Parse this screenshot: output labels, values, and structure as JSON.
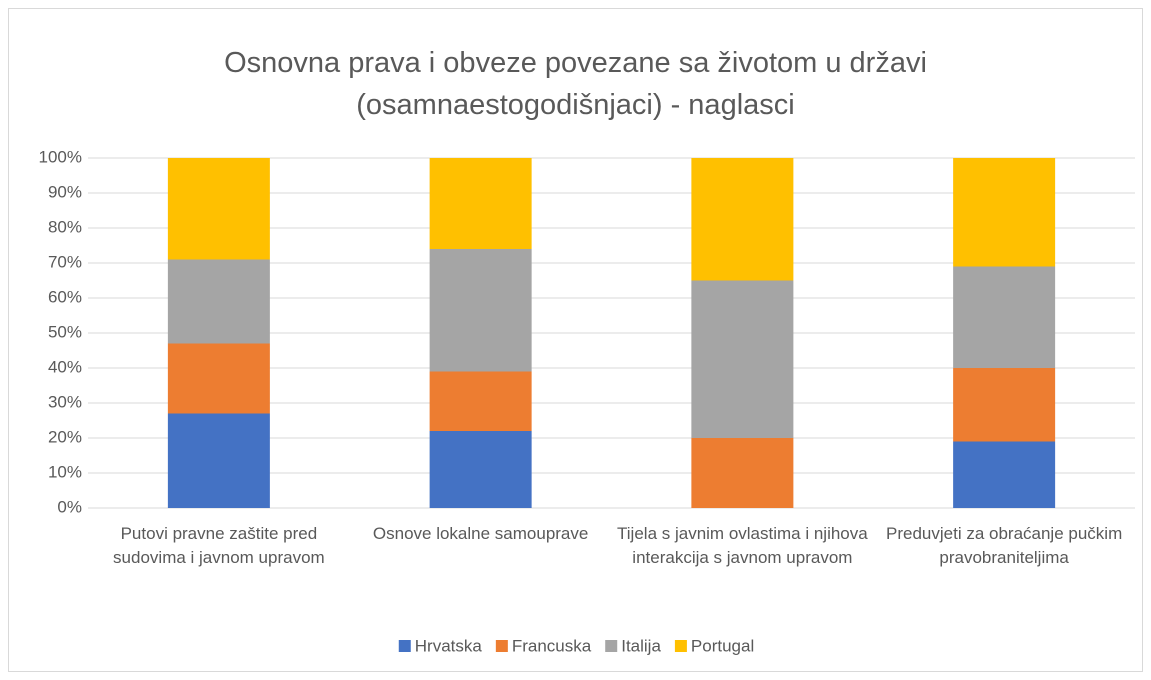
{
  "chart_data": {
    "type": "stacked_bar_percent",
    "title": "Osnovna prava i obveze povezane sa životom u državi (osamnaestogodišnjaci) - naglasci",
    "categories": [
      "Putovi pravne zaštite pred sudovima i javnom upravom",
      "Osnove lokalne samouprave",
      "Tijela s javnim ovlastima i njihova interakcija s javnom upravom",
      "Preduvjeti za obraćanje pučkim pravobraniteljima"
    ],
    "series": [
      {
        "name": "Hrvatska",
        "color": "#4472c4",
        "values": [
          27,
          22,
          0,
          19
        ]
      },
      {
        "name": "Francuska",
        "color": "#ed7d31",
        "values": [
          20,
          17,
          20,
          21
        ]
      },
      {
        "name": "Italija",
        "color": "#a5a5a5",
        "values": [
          24,
          35,
          45,
          29
        ]
      },
      {
        "name": "Portugal",
        "color": "#ffc000",
        "values": [
          29,
          26,
          35,
          31
        ]
      }
    ],
    "ylim": [
      0,
      100
    ],
    "yticks": [
      {
        "value": 0,
        "label": "0%"
      },
      {
        "value": 10,
        "label": "10%"
      },
      {
        "value": 20,
        "label": "20%"
      },
      {
        "value": 30,
        "label": "30%"
      },
      {
        "value": 40,
        "label": "40%"
      },
      {
        "value": 50,
        "label": "50%"
      },
      {
        "value": 60,
        "label": "60%"
      },
      {
        "value": 70,
        "label": "70%"
      },
      {
        "value": 80,
        "label": "80%"
      },
      {
        "value": 90,
        "label": "90%"
      },
      {
        "value": 100,
        "label": "100%"
      }
    ],
    "grid": true,
    "legend": "bottom"
  }
}
